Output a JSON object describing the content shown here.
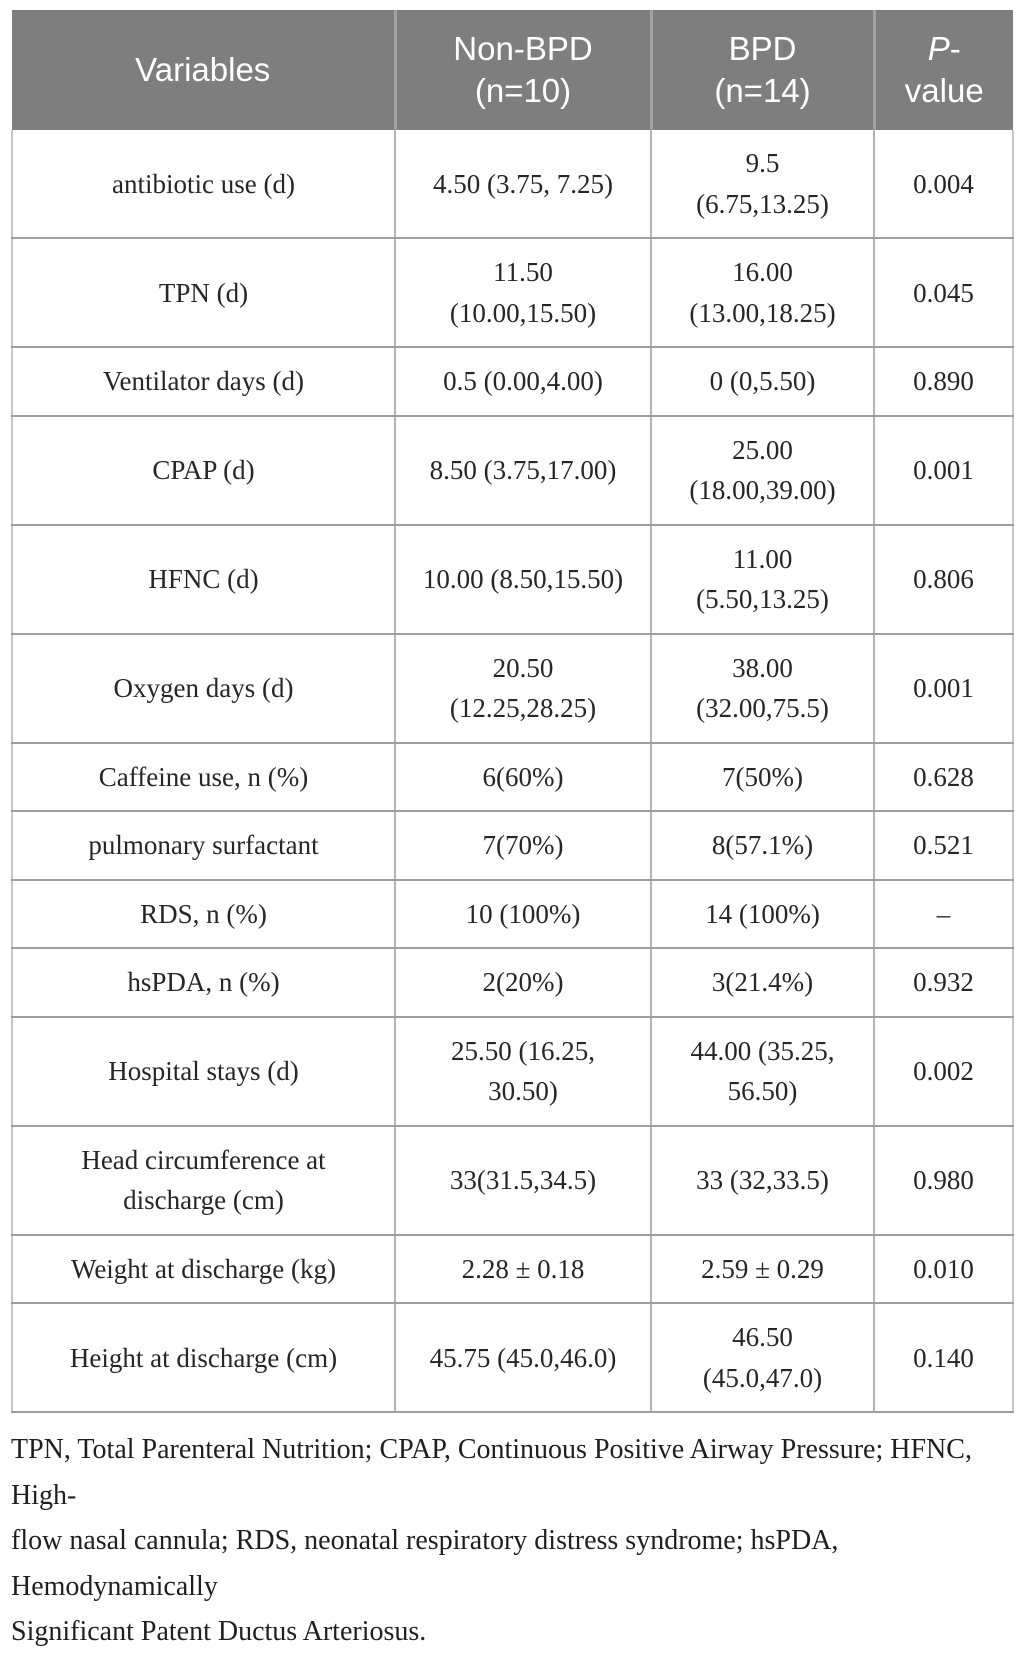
{
  "table": {
    "header": {
      "variables": "Variables",
      "non_bpd": "Non-BPD\n(n=10)",
      "bpd": "BPD\n(n=14)",
      "p_italic": "P",
      "p_rest": "-\nvalue"
    },
    "rows": [
      {
        "label": "antibiotic use (d)",
        "non_bpd": "4.50 (3.75, 7.25)",
        "bpd": "9.5\n(6.75,13.25)",
        "p": "0.004"
      },
      {
        "label": "TPN (d)",
        "non_bpd": "11.50\n(10.00,15.50)",
        "bpd": "16.00\n(13.00,18.25)",
        "p": "0.045"
      },
      {
        "label": "Ventilator days (d)",
        "non_bpd": "0.5 (0.00,4.00)",
        "bpd": "0 (0,5.50)",
        "p": "0.890"
      },
      {
        "label": "CPAP (d)",
        "non_bpd": "8.50 (3.75,17.00)",
        "bpd": "25.00\n(18.00,39.00)",
        "p": "0.001"
      },
      {
        "label": "HFNC (d)",
        "non_bpd": "10.00 (8.50,15.50)",
        "bpd": "11.00\n(5.50,13.25)",
        "p": "0.806"
      },
      {
        "label": "Oxygen days (d)",
        "non_bpd": "20.50\n(12.25,28.25)",
        "bpd": "38.00\n(32.00,75.5)",
        "p": "0.001"
      },
      {
        "label": "Caffeine use, n (%)",
        "non_bpd": "6(60%)",
        "bpd": "7(50%)",
        "p": "0.628"
      },
      {
        "label": "pulmonary surfactant",
        "non_bpd": "7(70%)",
        "bpd": "8(57.1%)",
        "p": "0.521"
      },
      {
        "label": "RDS, n (%)",
        "non_bpd": "10 (100%)",
        "bpd": "14 (100%)",
        "p": "–"
      },
      {
        "label": "hsPDA, n (%)",
        "non_bpd": "2(20%)",
        "bpd": "3(21.4%)",
        "p": "0.932"
      },
      {
        "label": "Hospital stays (d)",
        "non_bpd": "25.50 (16.25,\n30.50)",
        "bpd": "44.00 (35.25,\n56.50)",
        "p": "0.002"
      },
      {
        "label": "Head circumference at\ndischarge (cm)",
        "non_bpd": "33(31.5,34.5)",
        "bpd": "33 (32,33.5)",
        "p": "0.980"
      },
      {
        "label": "Weight at discharge (kg)",
        "non_bpd": "2.28 ± 0.18",
        "bpd": "2.59 ± 0.29",
        "p": "0.010"
      },
      {
        "label": "Height at discharge (cm)",
        "non_bpd": "45.75 (45.0,46.0)",
        "bpd": "46.50\n(45.0,47.0)",
        "p": "0.140"
      }
    ]
  },
  "footnote": "TPN, Total Parenteral Nutrition; CPAP, Continuous Positive Airway Pressure; HFNC, High-\nflow nasal cannula; RDS, neonatal respiratory distress syndrome; hsPDA, Hemodynamically\nSignificant Patent Ductus Arteriosus.",
  "colors": {
    "header_bg": "#7e7e7e",
    "header_text": "#ffffff",
    "body_text": "#262626",
    "grid_line": "#b3b3b3"
  }
}
